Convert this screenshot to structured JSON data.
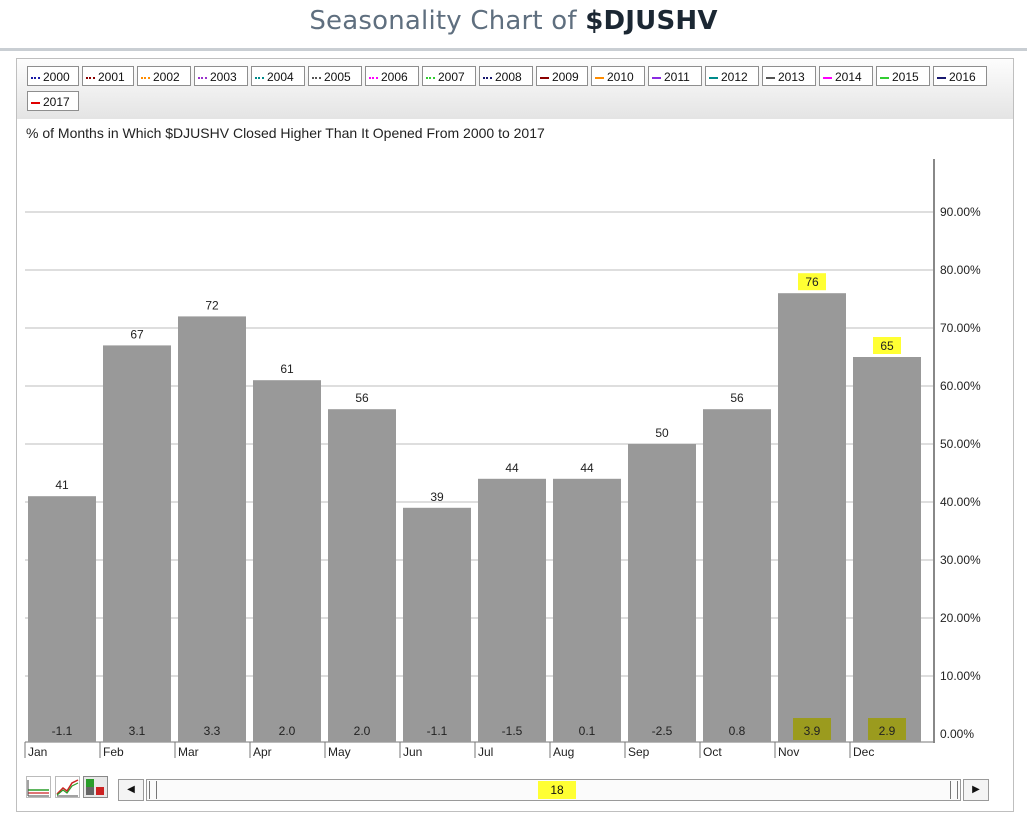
{
  "header": {
    "title_prefix": "Seasonality Chart of ",
    "title_symbol": "$DJUSHV"
  },
  "legend": [
    {
      "label": "2000",
      "color": "#1a1aa6",
      "style": "dot"
    },
    {
      "label": "2001",
      "color": "#8b0000",
      "style": "dot"
    },
    {
      "label": "2002",
      "color": "#ff8c00",
      "style": "dot"
    },
    {
      "label": "2003",
      "color": "#9932cc",
      "style": "dot"
    },
    {
      "label": "2004",
      "color": "#008b8b",
      "style": "dot"
    },
    {
      "label": "2005",
      "color": "#555555",
      "style": "dot"
    },
    {
      "label": "2006",
      "color": "#ff00ff",
      "style": "dot"
    },
    {
      "label": "2007",
      "color": "#32cd32",
      "style": "dot"
    },
    {
      "label": "2008",
      "color": "#191970",
      "style": "dot"
    },
    {
      "label": "2009",
      "color": "#8b0000",
      "style": "solid"
    },
    {
      "label": "2010",
      "color": "#ff8c00",
      "style": "solid"
    },
    {
      "label": "2011",
      "color": "#8a2be2",
      "style": "solid"
    },
    {
      "label": "2012",
      "color": "#008b8b",
      "style": "solid"
    },
    {
      "label": "2013",
      "color": "#555555",
      "style": "solid"
    },
    {
      "label": "2014",
      "color": "#ff00ff",
      "style": "solid"
    },
    {
      "label": "2015",
      "color": "#32cd32",
      "style": "solid"
    },
    {
      "label": "2016",
      "color": "#191970",
      "style": "solid"
    },
    {
      "label": "2017",
      "color": "#e00000",
      "style": "solid"
    }
  ],
  "chart_data": {
    "type": "bar",
    "title": "% of Months in Which $DJUSHV Closed Higher Than It Opened From 2000 to 2017",
    "categories": [
      "Jan",
      "Feb",
      "Mar",
      "Apr",
      "May",
      "Jun",
      "Jul",
      "Aug",
      "Sep",
      "Oct",
      "Nov",
      "Dec"
    ],
    "series": [
      {
        "values": [
          41,
          67,
          72,
          61,
          56,
          39,
          44,
          44,
          50,
          56,
          76,
          65
        ]
      },
      {
        "values": [
          "-1.1",
          "3.1",
          "3.3",
          "2.0",
          "2.0",
          "-1.1",
          "-1.5",
          "0.1",
          "-2.5",
          "0.8",
          "3.9",
          "2.9"
        ]
      }
    ],
    "value_labels": [
      "41",
      "67",
      "72",
      "61",
      "56",
      "39",
      "44",
      "44",
      "50",
      "56",
      "76",
      "65"
    ],
    "highlighted_months": [
      "Nov",
      "Dec"
    ],
    "ylim": [
      0,
      100
    ],
    "yticks": [
      "0.00%",
      "10.00%",
      "20.00%",
      "30.00%",
      "40.00%",
      "50.00%",
      "60.00%",
      "70.00%",
      "80.00%",
      "90.00%"
    ],
    "ytick_values": [
      0,
      10,
      20,
      30,
      40,
      50,
      60,
      70,
      80,
      90
    ],
    "grid": true,
    "bar_color": "#999999",
    "highlight_color": "#ffff33",
    "highlight_dark_color": "#9b9b1e"
  },
  "scrollbar": {
    "value": "18",
    "left_arrow": "◀",
    "right_arrow": "▶"
  }
}
